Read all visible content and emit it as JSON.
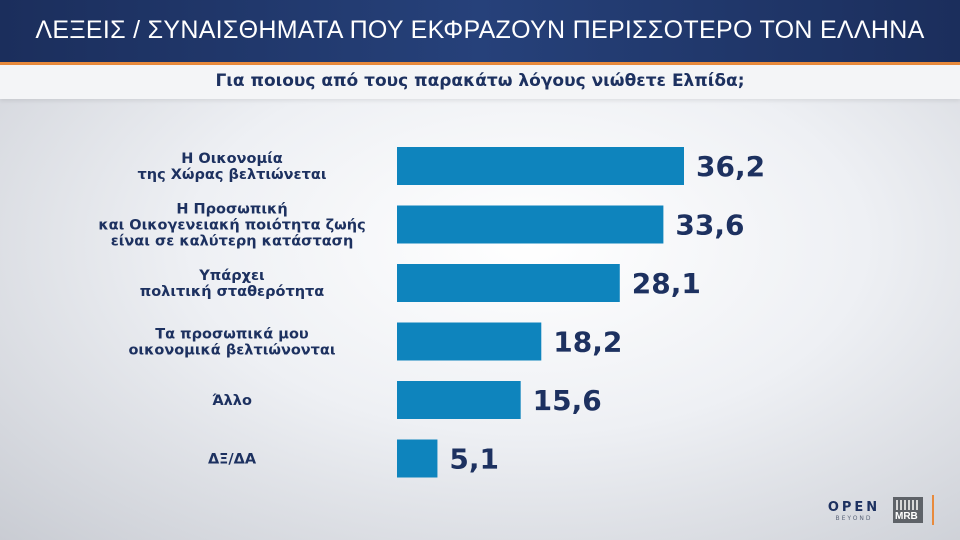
{
  "header": {
    "title": "ΛΕΞΕΙΣ / ΣΥΝΑΙΣΘΗΜΑΤΑ ΠΟΥ ΕΚΦΡΑΖΟΥΝ ΠΕΡΙΣΣΟΤΕΡΟ ΤΟΝ ΕΛΛΗΝΑ"
  },
  "subheader": {
    "title": "Για ποιους από τους παρακάτω λόγους νιώθετε Ελπίδα;"
  },
  "chart_data": {
    "type": "bar",
    "orientation": "horizontal",
    "categories": [
      [
        "Η Οικονομία",
        "της Χώρας βελτιώνεται"
      ],
      [
        "Η Προσωπική",
        "και Οικογενειακή ποιότητα ζωής",
        "είναι σε καλύτερη κατάσταση"
      ],
      [
        "Υπάρχει",
        "πολιτική σταθερότητα"
      ],
      [
        "Τα προσωπικά μου",
        "οικονομικά βελτιώνονται"
      ],
      [
        "Άλλο"
      ],
      [
        "ΔΞ/ΔΑ"
      ]
    ],
    "values": [
      36.2,
      33.6,
      28.1,
      18.2,
      15.6,
      5.1
    ],
    "value_labels": [
      "36,2",
      "33,6",
      "28,1",
      "18,2",
      "15,6",
      "5,1"
    ],
    "bar_color": "#0e84bd",
    "label_color": "#1d3160",
    "title": "Για ποιους από τους παρακάτω λόγους νιώθετε Ελπίδα;",
    "xlabel": "",
    "ylabel": "",
    "grid": false
  },
  "logos": {
    "open": "OPEN",
    "open_sub": "BEYOND",
    "mrb": "MRB"
  },
  "colors": {
    "header_bg": "#1b2e5c",
    "accent": "#e88a3c"
  }
}
